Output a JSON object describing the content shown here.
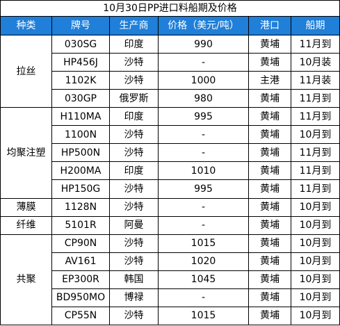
{
  "title": "10月30日PP进口料船期及价格",
  "header": {
    "category": "种类",
    "grade": "牌号",
    "producer": "生产商",
    "price": "价格（美元/吨）",
    "port": "港口",
    "schedule": "船期"
  },
  "colors": {
    "header_bg": "#1f7fd9",
    "header_text": "#ffffff",
    "grid_line": "#000000"
  },
  "groups": [
    {
      "category": "拉丝",
      "rows": [
        {
          "grade": "030SG",
          "producer": "印度",
          "price": "990",
          "port": "黄埔",
          "schedule": "11月到"
        },
        {
          "grade": "HP456J",
          "producer": "沙特",
          "price": "-",
          "port": "黄埔",
          "schedule": "10月装"
        },
        {
          "grade": "1102K",
          "producer": "沙特",
          "price": "1000",
          "port": "主港",
          "schedule": "11月装"
        },
        {
          "grade": "030GP",
          "producer": "俄罗斯",
          "price": "980",
          "port": "黄埔",
          "schedule": "11月到"
        }
      ]
    },
    {
      "category": "均聚注塑",
      "rows": [
        {
          "grade": "H110MA",
          "producer": "印度",
          "price": "995",
          "port": "黄埔",
          "schedule": "11月到"
        },
        {
          "grade": "1100N",
          "producer": "沙特",
          "price": "-",
          "port": "黄埔",
          "schedule": "10月到"
        },
        {
          "grade": "HP500N",
          "producer": "沙特",
          "price": "-",
          "port": "黄埔",
          "schedule": "11月到"
        },
        {
          "grade": "H200MA",
          "producer": "印度",
          "price": "1010",
          "port": "黄埔",
          "schedule": "11月到"
        },
        {
          "grade": "HP150G",
          "producer": "沙特",
          "price": "995",
          "port": "黄埔",
          "schedule": "11月到"
        }
      ]
    },
    {
      "category": "薄膜",
      "rows": [
        {
          "grade": "1128N",
          "producer": "沙特",
          "price": "-",
          "port": "黄埔",
          "schedule": "10月到"
        }
      ]
    },
    {
      "category": "纤维",
      "rows": [
        {
          "grade": "5101R",
          "producer": "阿曼",
          "price": "-",
          "port": "黄埔",
          "schedule": "10月到"
        }
      ]
    },
    {
      "category": "共聚",
      "rows": [
        {
          "grade": "CP90N",
          "producer": "沙特",
          "price": "1015",
          "port": "黄埔",
          "schedule": "10月到"
        },
        {
          "grade": "AV161",
          "producer": "沙特",
          "price": "1020",
          "port": "黄埔",
          "schedule": "10月到"
        },
        {
          "grade": "EP300R",
          "producer": "韩国",
          "price": "1045",
          "port": "黄埔",
          "schedule": "10月到"
        },
        {
          "grade": "BD950MO",
          "producer": "博禄",
          "price": "-",
          "port": "黄埔",
          "schedule": "10月到"
        },
        {
          "grade": "CP55N",
          "producer": "沙特",
          "price": "1015",
          "port": "黄埔",
          "schedule": "10月到"
        }
      ]
    }
  ]
}
